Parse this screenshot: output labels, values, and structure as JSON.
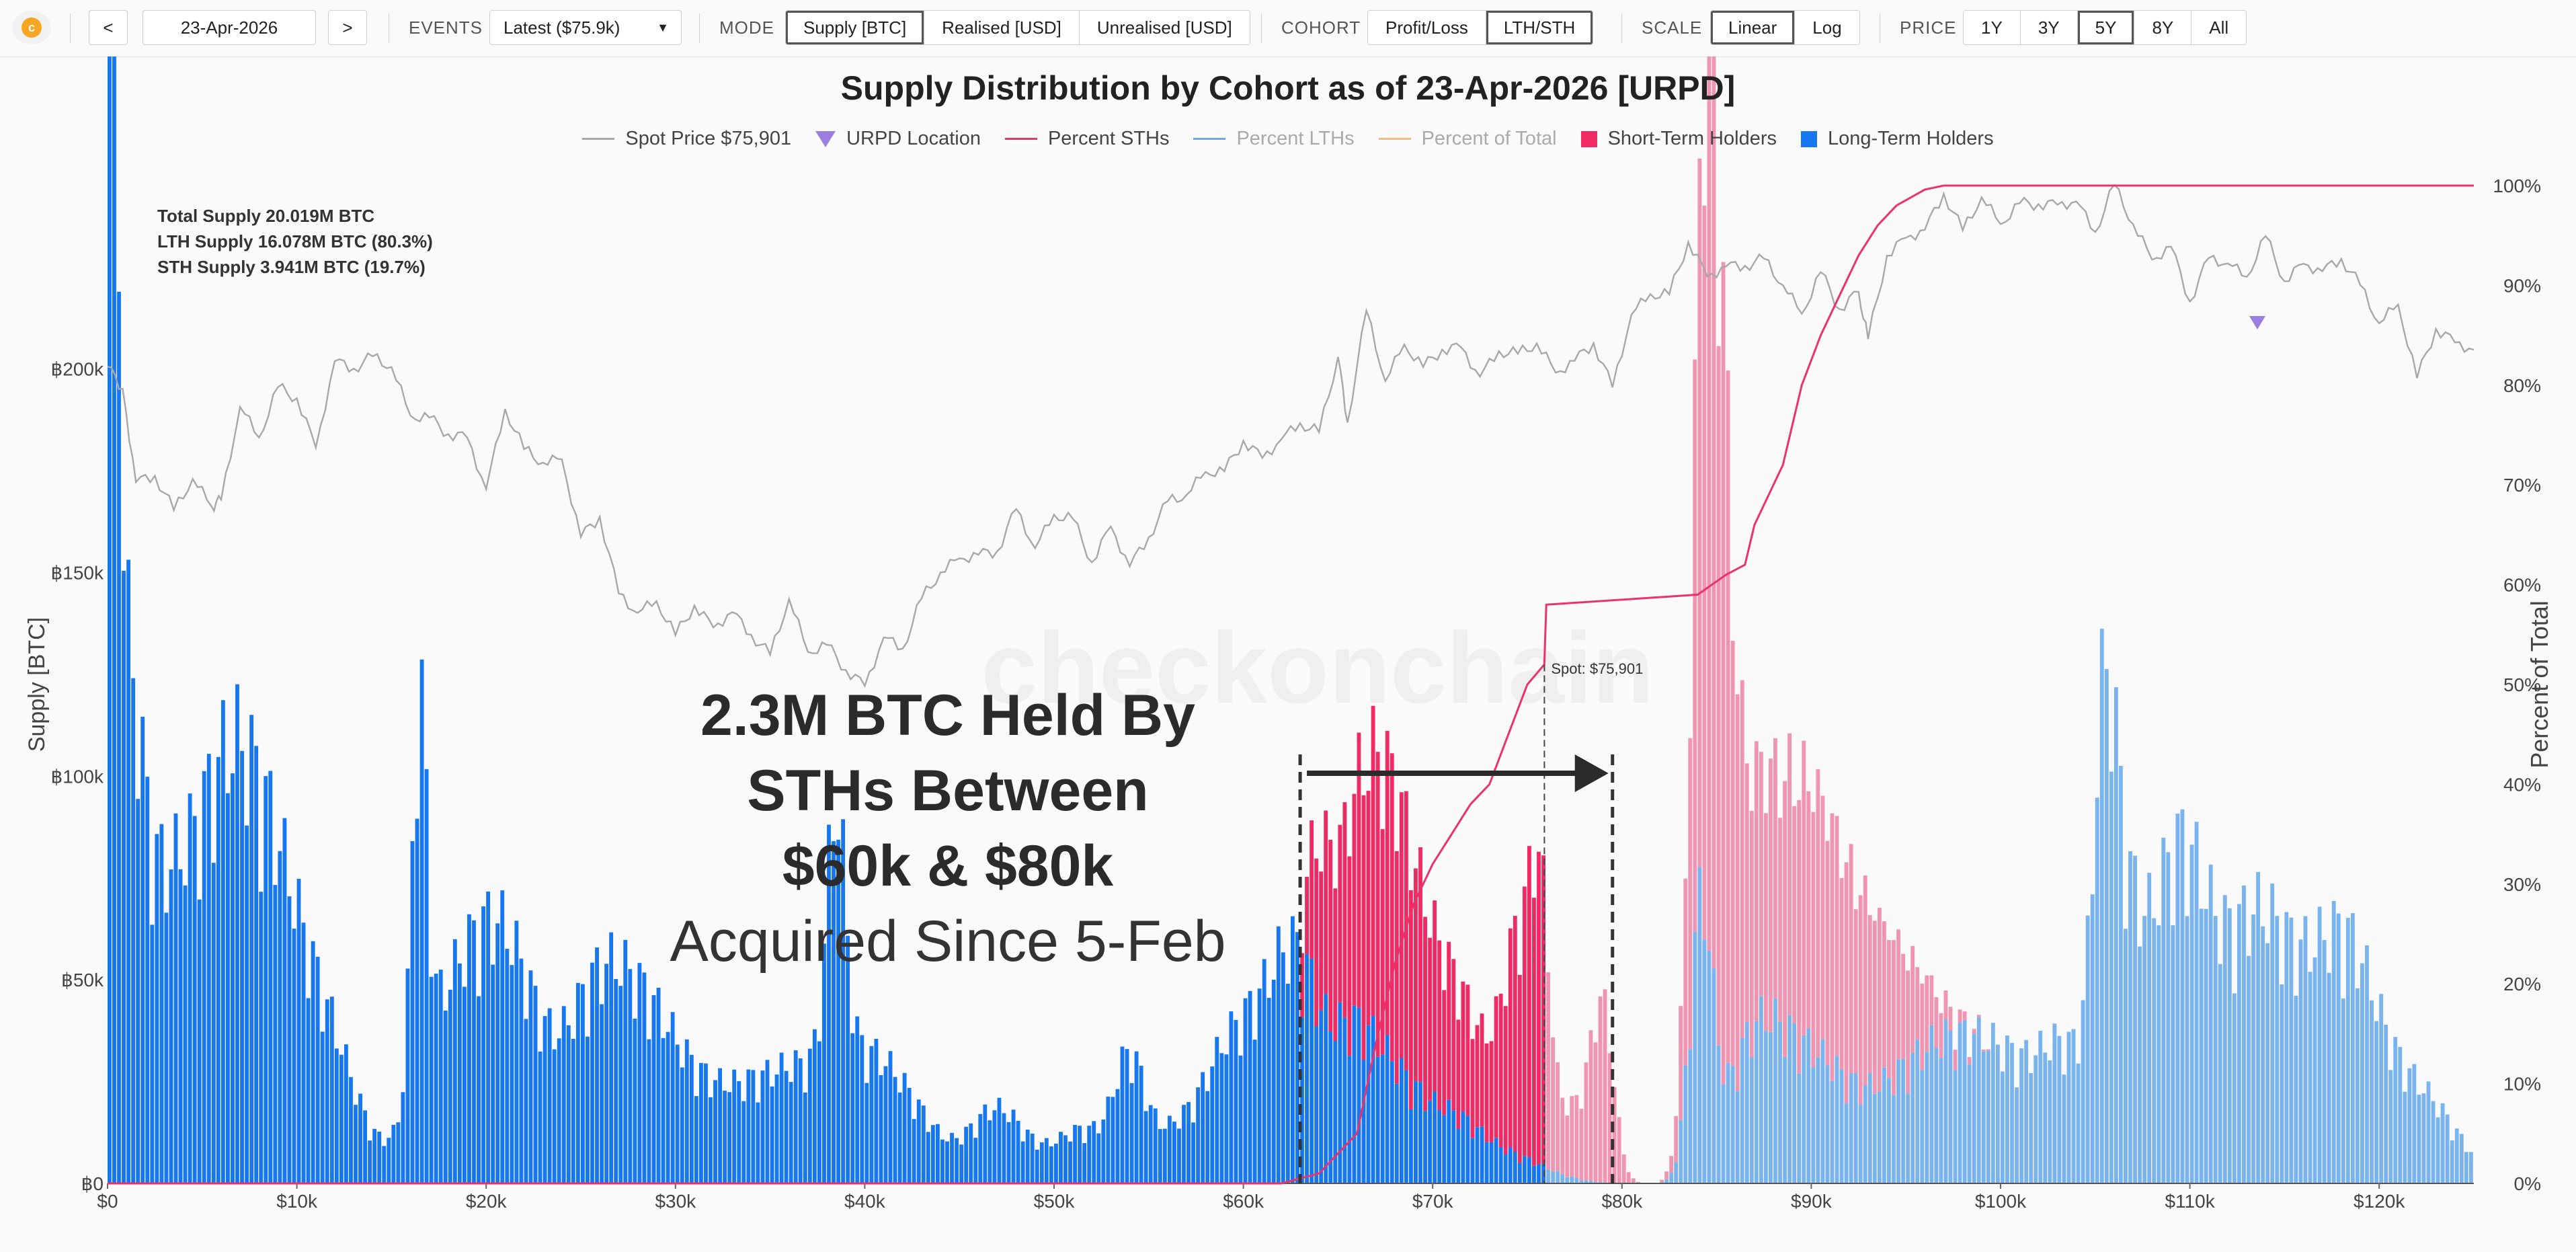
{
  "toolbar": {
    "prev_label": "<",
    "date": "23-Apr-2026",
    "next_label": ">",
    "events_label": "EVENTS",
    "events_value": "Latest ($75.9k)",
    "mode_label": "MODE",
    "mode_options": [
      "Supply [BTC]",
      "Realised [USD]",
      "Unrealised [USD]"
    ],
    "mode_active": 0,
    "cohort_label": "COHORT",
    "cohort_options": [
      "Profit/Loss",
      "LTH/STH"
    ],
    "cohort_active": 1,
    "scale_label": "SCALE",
    "scale_options": [
      "Linear",
      "Log"
    ],
    "scale_active": 0,
    "price_label": "PRICE",
    "price_options": [
      "1Y",
      "3Y",
      "5Y",
      "8Y",
      "All"
    ],
    "price_active": 2,
    "logo_icon": "checkonchain-logo-icon"
  },
  "chart_data": {
    "type": "bar",
    "title": "Supply Distribution by Cohort as of 23-Apr-2026 [URPD]",
    "legend": [
      {
        "label": "Spot Price $75,901",
        "kind": "line",
        "color": "#a8a8a8",
        "dim": false
      },
      {
        "label": "URPD Location",
        "kind": "triangle",
        "color": "#9b7fe0",
        "dim": false
      },
      {
        "label": "Percent STHs",
        "kind": "line",
        "color": "#e8336d",
        "dim": false
      },
      {
        "label": "Percent LTHs",
        "kind": "line",
        "color": "#6aa8ef",
        "dim": true
      },
      {
        "label": "Percent of Total",
        "kind": "line",
        "color": "#f5b97a",
        "dim": true
      },
      {
        "label": "Short-Term Holders",
        "kind": "box",
        "color": "#f02a63",
        "dim": false
      },
      {
        "label": "Long-Term Holders",
        "kind": "box",
        "color": "#1677f0",
        "dim": false
      }
    ],
    "ylabel": "Supply [BTC]",
    "y2label": "Percent of Total",
    "xlim": [
      0,
      125000
    ],
    "ylim": [
      0,
      245000
    ],
    "y2lim": [
      0,
      100
    ],
    "x_ticks": [
      "$0",
      "$10k",
      "$20k",
      "$30k",
      "$40k",
      "$50k",
      "$60k",
      "$70k",
      "$80k",
      "$90k",
      "$100k",
      "$110k",
      "$120k"
    ],
    "y_ticks": [
      "฿0",
      "฿50k",
      "฿100k",
      "฿150k",
      "฿200k"
    ],
    "y2_ticks": [
      "0%",
      "10%",
      "20%",
      "30%",
      "40%",
      "50%",
      "60%",
      "70%",
      "80%",
      "90%",
      "100%"
    ],
    "supply_notes": [
      {
        "text": "Total Supply 20.019M BTC",
        "color": "#f0901e"
      },
      {
        "text": "LTH Supply 16.078M BTC (80.3%)",
        "color": "#1677f0"
      },
      {
        "text": "STH Supply 3.941M BTC (19.7%)",
        "color": "#e8336d"
      }
    ],
    "spot_label": "Spot: $75,901",
    "spot_price": 75901,
    "watermark": "checkonchain",
    "annotation": {
      "bold_lines": [
        "2.3M BTC Held By",
        "STHs Between",
        "$60k & $80k"
      ],
      "light_line": "Acquired Since 5-Feb",
      "range_low": 63000,
      "range_high": 79500
    },
    "bin_width": 250,
    "lth_peaks": [
      [
        0,
        245000,
        250
      ],
      [
        300,
        180000,
        300
      ],
      [
        800,
        95000,
        900
      ],
      [
        2500,
        45000,
        1500
      ],
      [
        4500,
        38000,
        1500
      ],
      [
        6500,
        62000,
        1400
      ],
      [
        8500,
        48000,
        1500
      ],
      [
        10000,
        22000,
        1500
      ],
      [
        12000,
        24000,
        1500
      ],
      [
        16500,
        85000,
        400
      ],
      [
        17500,
        30000,
        1500
      ],
      [
        20000,
        40000,
        1500
      ],
      [
        22000,
        30000,
        1500
      ],
      [
        25500,
        33000,
        1500
      ],
      [
        27500,
        26000,
        1500
      ],
      [
        29500,
        22000,
        1500
      ],
      [
        32000,
        14000,
        1500
      ],
      [
        34500,
        16000,
        1500
      ],
      [
        37000,
        20000,
        1500
      ],
      [
        38500,
        60000,
        500
      ],
      [
        40000,
        24000,
        1500
      ],
      [
        42500,
        14000,
        1500
      ],
      [
        47000,
        17000,
        1500
      ],
      [
        51500,
        12000,
        1500
      ],
      [
        54000,
        24000,
        800
      ],
      [
        56500,
        12000,
        1500
      ],
      [
        59000,
        20000,
        1200
      ],
      [
        61500,
        38000,
        1500
      ],
      [
        63000,
        24000,
        1000
      ],
      [
        65500,
        30000,
        1400
      ],
      [
        68000,
        20000,
        1500
      ],
      [
        71000,
        12000,
        1500
      ],
      [
        74000,
        6000,
        2000
      ]
    ],
    "sth_peaks": [
      [
        64000,
        22000,
        600
      ],
      [
        66800,
        58000,
        1800
      ],
      [
        69500,
        28000,
        1800
      ],
      [
        72000,
        15000,
        1200
      ],
      [
        74600,
        50000,
        900
      ],
      [
        75700,
        46000,
        500
      ],
      [
        77500,
        16000,
        1000
      ],
      [
        79000,
        38000,
        600
      ],
      [
        84500,
        155000,
        700
      ],
      [
        85200,
        88000,
        700
      ],
      [
        86500,
        42000,
        1200
      ],
      [
        88800,
        38000,
        1400
      ],
      [
        90500,
        30000,
        1500
      ],
      [
        92500,
        30000,
        1500
      ],
      [
        95000,
        20000,
        1500
      ]
    ],
    "lth_upper_peaks": [
      [
        84200,
        60000,
        600
      ],
      [
        87000,
        30000,
        1500
      ],
      [
        90000,
        25000,
        1800
      ],
      [
        94000,
        16000,
        2000
      ],
      [
        97000,
        22000,
        1800
      ],
      [
        100000,
        24000,
        1800
      ],
      [
        103500,
        28000,
        1500
      ],
      [
        105500,
        76000,
        600
      ],
      [
        106500,
        50000,
        900
      ],
      [
        108500,
        42000,
        1200
      ],
      [
        110000,
        44000,
        1200
      ],
      [
        112000,
        30000,
        1500
      ],
      [
        114000,
        42000,
        1500
      ],
      [
        116500,
        30000,
        1500
      ],
      [
        118500,
        36000,
        1400
      ],
      [
        121000,
        20000,
        1800
      ],
      [
        123500,
        8000,
        1500
      ]
    ],
    "sth_percent": [
      [
        0,
        0
      ],
      [
        62000,
        0
      ],
      [
        64000,
        1
      ],
      [
        66000,
        5
      ],
      [
        67000,
        14
      ],
      [
        68000,
        22
      ],
      [
        69000,
        28
      ],
      [
        70000,
        32
      ],
      [
        71000,
        35
      ],
      [
        72000,
        38
      ],
      [
        73000,
        40
      ],
      [
        74000,
        45
      ],
      [
        75000,
        50
      ],
      [
        75900,
        52
      ],
      [
        76000,
        58
      ],
      [
        84000,
        59
      ],
      [
        85500,
        61
      ],
      [
        86500,
        62
      ],
      [
        87000,
        66
      ],
      [
        88500,
        72
      ],
      [
        89500,
        80
      ],
      [
        90500,
        85
      ],
      [
        91500,
        89
      ],
      [
        92500,
        93
      ],
      [
        93500,
        96
      ],
      [
        94500,
        98
      ],
      [
        96000,
        99.6
      ],
      [
        97000,
        100
      ],
      [
        125000,
        100
      ]
    ],
    "spot_history": [
      [
        0,
        200500
      ],
      [
        800,
        196500
      ],
      [
        1500,
        175000
      ],
      [
        2500,
        171000
      ],
      [
        3500,
        166000
      ],
      [
        4500,
        176000
      ],
      [
        5500,
        160000
      ],
      [
        6000,
        168000
      ],
      [
        7000,
        186000
      ],
      [
        8000,
        190000
      ],
      [
        9000,
        190000
      ],
      [
        10000,
        194500
      ],
      [
        11000,
        182500
      ],
      [
        12000,
        198500
      ],
      [
        13000,
        203000
      ],
      [
        14000,
        201000
      ],
      [
        15000,
        202500
      ],
      [
        16000,
        186000
      ],
      [
        17000,
        190000
      ],
      [
        18000,
        184500
      ],
      [
        19000,
        179000
      ],
      [
        20000,
        177000
      ],
      [
        21000,
        184500
      ],
      [
        22000,
        182000
      ],
      [
        23000,
        180000
      ],
      [
        24000,
        172000
      ],
      [
        25000,
        164000
      ],
      [
        26000,
        161000
      ],
      [
        27000,
        145000
      ],
      [
        28000,
        141000
      ],
      [
        29000,
        142000
      ],
      [
        30000,
        136000
      ],
      [
        31000,
        139000
      ],
      [
        32000,
        141000
      ],
      [
        33000,
        136000
      ],
      [
        34000,
        136000
      ],
      [
        35000,
        133000
      ],
      [
        36000,
        137000
      ],
      [
        37000,
        137000
      ],
      [
        38000,
        129000
      ],
      [
        39000,
        125000
      ],
      [
        40000,
        126000
      ],
      [
        41000,
        130000
      ],
      [
        42000,
        134000
      ],
      [
        43000,
        142000
      ],
      [
        44000,
        151500
      ],
      [
        45000,
        152000
      ],
      [
        46000,
        154500
      ],
      [
        47000,
        158000
      ],
      [
        48000,
        160000
      ],
      [
        49000,
        162000
      ],
      [
        50000,
        161000
      ],
      [
        51000,
        161500
      ],
      [
        52000,
        158000
      ],
      [
        53000,
        155000
      ],
      [
        54000,
        155500
      ],
      [
        55000,
        158000
      ],
      [
        56000,
        166000
      ],
      [
        57000,
        171000
      ],
      [
        58000,
        173000
      ],
      [
        59000,
        177000
      ],
      [
        60000,
        179000
      ],
      [
        61000,
        182000
      ],
      [
        62000,
        180500
      ],
      [
        63000,
        185000
      ],
      [
        64000,
        190000
      ],
      [
        65000,
        196000
      ],
      [
        65500,
        190000
      ],
      [
        66500,
        208000
      ],
      [
        67500,
        203000
      ],
      [
        68500,
        203000
      ],
      [
        69500,
        200000
      ],
      [
        70500,
        207000
      ],
      [
        71500,
        203000
      ],
      [
        72500,
        200000
      ],
      [
        73500,
        202000
      ],
      [
        74500,
        207000
      ],
      [
        75500,
        203000
      ],
      [
        76500,
        200000
      ],
      [
        77500,
        205000
      ],
      [
        78500,
        200000
      ],
      [
        79500,
        202000
      ],
      [
        80500,
        210000
      ],
      [
        81500,
        217000
      ],
      [
        82500,
        223000
      ],
      [
        83500,
        226000
      ],
      [
        84500,
        226000
      ],
      [
        85500,
        224000
      ],
      [
        86500,
        225500
      ],
      [
        87500,
        227000
      ],
      [
        88500,
        220000
      ],
      [
        89500,
        216000
      ],
      [
        90500,
        219000
      ],
      [
        91500,
        220000
      ],
      [
        92500,
        216000
      ],
      [
        93000,
        214000
      ],
      [
        94000,
        222000
      ],
      [
        95000,
        234000
      ],
      [
        96000,
        237000
      ],
      [
        97000,
        237500
      ],
      [
        98000,
        239000
      ],
      [
        99000,
        239500
      ],
      [
        100000,
        236000
      ],
      [
        101000,
        241000
      ],
      [
        102000,
        240000
      ],
      [
        103000,
        241500
      ],
      [
        104000,
        238000
      ],
      [
        105000,
        238500
      ],
      [
        106000,
        240500
      ],
      [
        107000,
        237000
      ],
      [
        108000,
        230000
      ],
      [
        109000,
        223500
      ],
      [
        110000,
        223000
      ],
      [
        111000,
        224000
      ],
      [
        112000,
        225000
      ],
      [
        113000,
        226000
      ],
      [
        114000,
        229000
      ],
      [
        115000,
        224000
      ],
      [
        116000,
        224000
      ],
      [
        117000,
        226000
      ],
      [
        118000,
        225000
      ],
      [
        119000,
        221000
      ],
      [
        120000,
        214000
      ],
      [
        121000,
        210000
      ],
      [
        122000,
        204000
      ],
      [
        123000,
        206500
      ],
      [
        124000,
        205000
      ],
      [
        125000,
        210000
      ]
    ]
  }
}
